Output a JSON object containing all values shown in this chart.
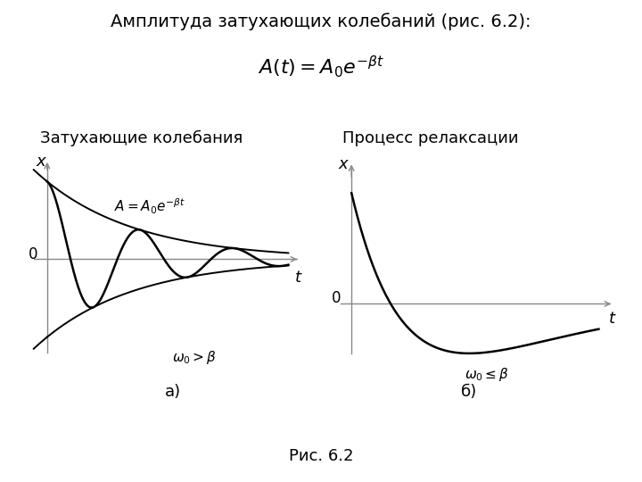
{
  "bg_color": "#ffffff",
  "title_text": "Амплитуда затухающих колебаний (рис. 6.2):",
  "formula": "$A(t)= A_0 e^{-\\beta t}$",
  "label_a": "Затухающие колебания",
  "label_b": "Процесс релаксации",
  "caption": "Рис. 6.2",
  "annotation_a": "$A = A_0 e^{-\\beta t}$",
  "annotation_omega_a": "$\\omega_0 > \\beta$",
  "annotation_omega_b": "$\\omega_0 \\leq \\beta$",
  "beta_osc": 0.28,
  "omega_osc": 1.8,
  "beta_relax": 0.55,
  "t_max_osc": 9.0,
  "t_max_relax": 7.0,
  "axis_color": "#888888",
  "curve_color": "#000000",
  "envelope_color": "#000000",
  "title_fontsize": 14,
  "formula_fontsize": 16,
  "label_fontsize": 13,
  "annot_fontsize": 11,
  "axis_label_fontsize": 13
}
